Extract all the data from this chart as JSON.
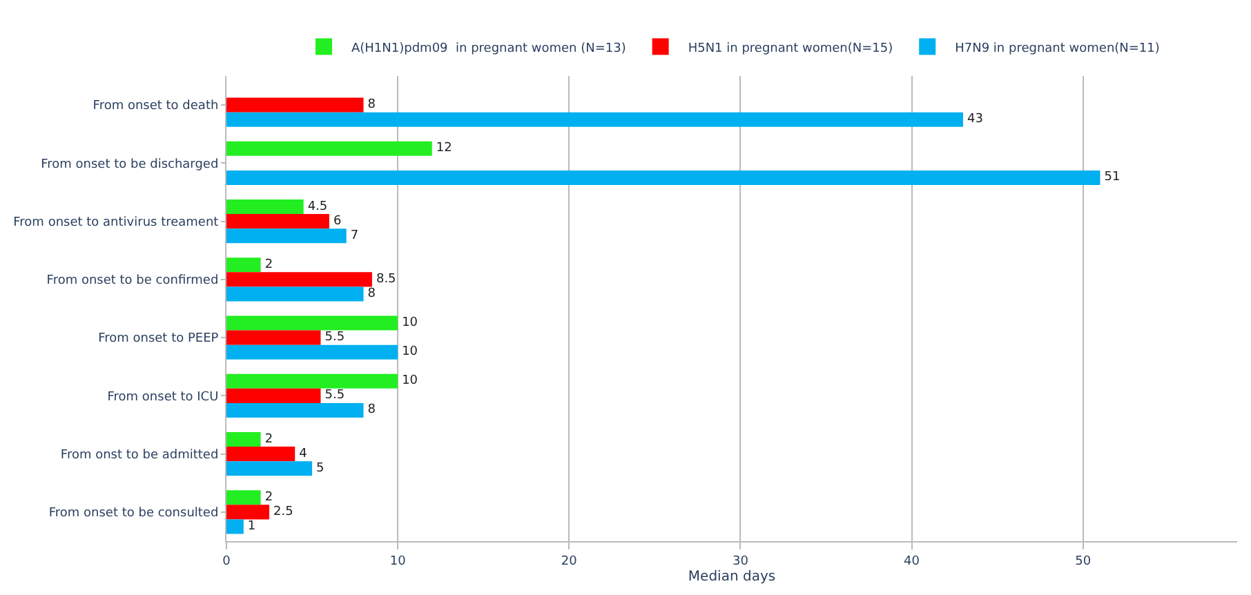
{
  "chart_data": {
    "type": "bar",
    "orientation": "horizontal",
    "xlabel": "Median days",
    "categories": [
      "From onset to death",
      "From onset to be discharged",
      "From onset to antivirus treament",
      "From onset to be confirmed",
      "From onset to PEEP",
      "From onset to ICU",
      "From onst to be admitted",
      "From onset to be consulted"
    ],
    "series": [
      {
        "name": "A(H1N1)pdm09  in pregnant women (N=13)",
        "color": "#22ee22",
        "values": [
          null,
          12,
          4.5,
          2,
          10,
          10,
          2,
          2
        ]
      },
      {
        "name": "H5N1 in pregnant women(N=15)",
        "color": "#ff0000",
        "values": [
          8,
          null,
          6,
          8.5,
          5.5,
          5.5,
          4,
          2.5
        ]
      },
      {
        "name": "H7N9 in pregnant women(N=11)",
        "color": "#00b0f0",
        "values": [
          43,
          51,
          7,
          8,
          10,
          8,
          5,
          1
        ]
      }
    ],
    "xlim": [
      0,
      59
    ],
    "xticks": [
      0,
      10,
      20,
      30,
      40,
      50
    ],
    "grid": "x",
    "legend": "top",
    "data_labels": true
  }
}
